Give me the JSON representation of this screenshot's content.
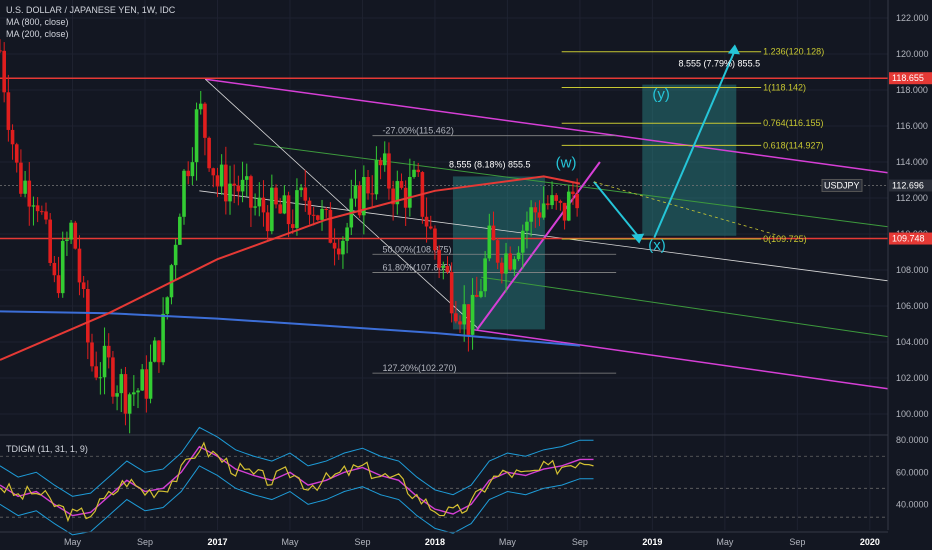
{
  "header": {
    "title": "U.S. DOLLAR / JAPANESE YEN, 1W, IDC",
    "ma1": "MA (800, close)",
    "ma2": "MA (200, close)"
  },
  "indicator": {
    "label": "TDIGM (11, 31, 1, 9)",
    "ticks": [
      "80.0000",
      "60.0000",
      "40.0000"
    ]
  },
  "price_axis": {
    "ticks": [
      "122.000",
      "120.000",
      "118.000",
      "116.000",
      "114.000",
      "112.000",
      "110.000",
      "108.000",
      "106.000",
      "104.000",
      "102.000",
      "100.000"
    ],
    "badges": [
      {
        "text": "118.655",
        "color": "#e53935"
      },
      {
        "text": "USDJPY",
        "color": "#2a2e39"
      },
      {
        "text": "112.696",
        "color": "#2a2e39"
      },
      {
        "text": "109.748",
        "color": "#e53935"
      }
    ]
  },
  "time_axis": {
    "labels": [
      "May",
      "Sep",
      "2017",
      "May",
      "Sep",
      "2018",
      "May",
      "Sep",
      "2019",
      "May",
      "Sep",
      "2020"
    ]
  },
  "annotations": {
    "fib_upper": [
      "1.236(120.128)",
      "1(118.142)",
      "0.764(116.155)",
      "0.618(114.927)",
      "0(109.725)"
    ],
    "fib_lower": [
      "-27.00%(115.462)",
      "50.00%(108.875)",
      "61.80%(107.865)",
      "127.20%(102.270)"
    ],
    "measure1": "8.555 (8.18%) 855.5",
    "measure2": "8.555 (7.79%) 855.5",
    "wave_w": "(w)",
    "wave_x": "(x)",
    "wave_y": "(y)"
  },
  "colors": {
    "background": "#131722",
    "bull": "#33cc33",
    "bear": "#e01e1e",
    "ma200": "#e53935",
    "ma800": "#3c6ed7",
    "channel": "#d63fd6",
    "fib": "#c8c832",
    "arrow": "#25c5d8"
  },
  "chart_data": {
    "type": "candlestick",
    "title": "U.S. DOLLAR / JAPANESE YEN, 1W, IDC",
    "symbol": "USDJPY",
    "last_price": 112.696,
    "ylim": [
      99,
      123
    ],
    "indicator_ylim": [
      24,
      82
    ],
    "x_start": "2016-01",
    "x_end": "2020-02",
    "levels": [
      118.655,
      109.748
    ],
    "close_path": [
      {
        "x": "2016-01",
        "y": 120.2
      },
      {
        "x": "2016-02",
        "y": 113.0
      },
      {
        "x": "2016-03",
        "y": 112.5
      },
      {
        "x": "2016-04",
        "y": 107.0
      },
      {
        "x": "2016-05",
        "y": 110.5
      },
      {
        "x": "2016-06",
        "y": 102.8
      },
      {
        "x": "2016-07",
        "y": 102.5
      },
      {
        "x": "2016-08",
        "y": 101.2
      },
      {
        "x": "2016-09",
        "y": 101.5
      },
      {
        "x": "2016-10",
        "y": 104.7
      },
      {
        "x": "2016-11",
        "y": 112.5
      },
      {
        "x": "2016-12",
        "y": 117.0
      },
      {
        "x": "2017-01",
        "y": 112.8
      },
      {
        "x": "2017-02",
        "y": 112.8
      },
      {
        "x": "2017-03",
        "y": 111.4
      },
      {
        "x": "2017-04",
        "y": 111.3
      },
      {
        "x": "2017-05",
        "y": 110.8
      },
      {
        "x": "2017-06",
        "y": 112.3
      },
      {
        "x": "2017-07",
        "y": 110.3
      },
      {
        "x": "2017-08",
        "y": 110.0
      },
      {
        "x": "2017-09",
        "y": 112.5
      },
      {
        "x": "2017-10",
        "y": 113.6
      },
      {
        "x": "2017-11",
        "y": 112.2
      },
      {
        "x": "2017-12",
        "y": 112.7
      },
      {
        "x": "2018-01",
        "y": 109.2
      },
      {
        "x": "2018-02",
        "y": 106.7
      },
      {
        "x": "2018-03",
        "y": 105.0
      },
      {
        "x": "2018-04",
        "y": 109.3
      },
      {
        "x": "2018-05",
        "y": 108.8
      },
      {
        "x": "2018-06",
        "y": 110.7
      },
      {
        "x": "2018-07",
        "y": 111.8
      },
      {
        "x": "2018-08",
        "y": 111.0
      },
      {
        "x": "2018-09",
        "y": 113.0
      }
    ],
    "ma200": [
      {
        "x": "2016-01",
        "y": 103.0
      },
      {
        "x": "2016-07",
        "y": 105.6
      },
      {
        "x": "2017-01",
        "y": 108.6
      },
      {
        "x": "2017-07",
        "y": 110.8
      },
      {
        "x": "2018-01",
        "y": 112.4
      },
      {
        "x": "2018-07",
        "y": 113.2
      },
      {
        "x": "2018-09",
        "y": 112.8
      }
    ],
    "ma800": [
      {
        "x": "2016-01",
        "y": 105.7
      },
      {
        "x": "2016-07",
        "y": 105.6
      },
      {
        "x": "2017-01",
        "y": 105.3
      },
      {
        "x": "2017-07",
        "y": 104.9
      },
      {
        "x": "2018-01",
        "y": 104.5
      },
      {
        "x": "2018-09",
        "y": 103.8
      }
    ],
    "indicator_series": [
      {
        "name": "TDIGM",
        "values": [
          52,
          45,
          48,
          40,
          33,
          35,
          45,
          55,
          48,
          50,
          60,
          76,
          70,
          62,
          58,
          55,
          60,
          52,
          55,
          60,
          63,
          58,
          55,
          45,
          37,
          34,
          40,
          55,
          60,
          58,
          62,
          64,
          68
        ]
      }
    ]
  }
}
